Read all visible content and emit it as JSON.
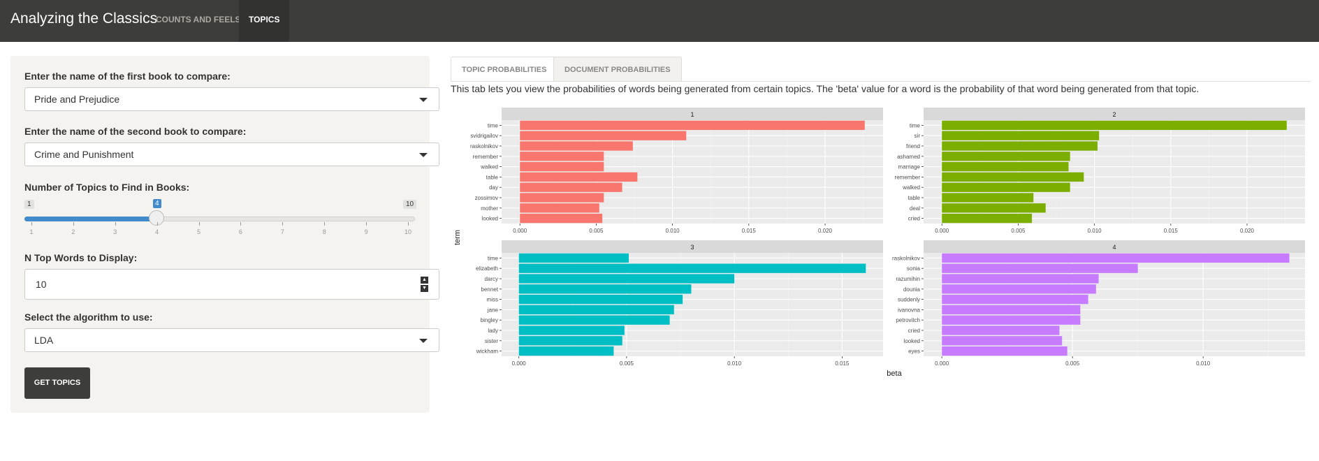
{
  "navbar": {
    "brand": "Analyzing the Classics",
    "tabs": [
      {
        "label": "COUNTS AND FEELS",
        "active": false
      },
      {
        "label": "TOPICS",
        "active": true
      }
    ]
  },
  "sidebar": {
    "first_book_label": "Enter the name of the first book to compare:",
    "first_book_value": "Pride and Prejudice",
    "second_book_label": "Enter the name of the second book to compare:",
    "second_book_value": "Crime and Punishment",
    "topics_label": "Number of Topics to Find in Books:",
    "slider_min": "1",
    "slider_max": "10",
    "slider_value": "4",
    "slider_ticks": [
      "1",
      "2",
      "3",
      "4",
      "5",
      "6",
      "7",
      "8",
      "9",
      "10"
    ],
    "ntop_label": "N Top Words to Display:",
    "ntop_value": "10",
    "algo_label": "Select the algorithm to use:",
    "algo_value": "LDA",
    "button_label": "GET TOPICS"
  },
  "main": {
    "tabs": [
      {
        "label": "TOPIC PROBABILITIES",
        "active": true
      },
      {
        "label": "DOCUMENT PROBABILITIES",
        "active": false
      }
    ],
    "description": "This tab lets you view the probabilities of words being generated from certain topics. The 'beta' value for a word is the probability of that word being generated from that topic."
  },
  "chart_data": {
    "type": "bar",
    "orientation": "horizontal",
    "facets": true,
    "xlabel": "beta",
    "ylabel": "term",
    "panels": [
      {
        "title": "1",
        "color": "#f8766d",
        "terms": [
          "time",
          "svidrigailov",
          "raskolnikov",
          "remember",
          "walked",
          "table",
          "day",
          "zossimov",
          "mother",
          "looked"
        ],
        "values": [
          0.0226,
          0.0109,
          0.0074,
          0.0055,
          0.0055,
          0.0077,
          0.0067,
          0.0055,
          0.0052,
          0.0054
        ],
        "xlim": [
          -0.0012,
          0.0238
        ],
        "ticks": [
          "0.000",
          "0.005",
          "0.010",
          "0.015",
          "0.020"
        ],
        "tick_values": [
          0,
          0.005,
          0.01,
          0.015,
          0.02
        ]
      },
      {
        "title": "2",
        "color": "#7cae00",
        "terms": [
          "time",
          "sir",
          "friend",
          "ashamed",
          "marriage",
          "remember",
          "walked",
          "table",
          "deal",
          "cried"
        ],
        "values": [
          0.0226,
          0.0103,
          0.0102,
          0.0084,
          0.0083,
          0.0093,
          0.0084,
          0.006,
          0.0068,
          0.0059
        ],
        "xlim": [
          -0.0012,
          0.0238
        ],
        "ticks": [
          "0.000",
          "0.005",
          "0.010",
          "0.015",
          "0.020"
        ],
        "tick_values": [
          0,
          0.005,
          0.01,
          0.015,
          0.02
        ]
      },
      {
        "title": "3",
        "color": "#00bfc4",
        "terms": [
          "time",
          "elizabeth",
          "darcy",
          "bennet",
          "miss",
          "jane",
          "bingley",
          "lady",
          "sister",
          "wickham"
        ],
        "values": [
          0.0051,
          0.0161,
          0.01,
          0.008,
          0.0076,
          0.0072,
          0.007,
          0.0049,
          0.0048,
          0.0044
        ],
        "xlim": [
          -0.0008,
          0.0169
        ],
        "ticks": [
          "0.000",
          "0.005",
          "0.010",
          "0.015"
        ],
        "tick_values": [
          0,
          0.005,
          0.01,
          0.015
        ]
      },
      {
        "title": "4",
        "color": "#c77cff",
        "terms": [
          "raskolnikov",
          "sonia",
          "razumihin",
          "dounia",
          "suddenly",
          "ivanovna",
          "petrovitch",
          "cried",
          "looked",
          "eyes"
        ],
        "values": [
          0.0133,
          0.0075,
          0.006,
          0.0059,
          0.0056,
          0.0053,
          0.0053,
          0.0045,
          0.0046,
          0.0048
        ],
        "xlim": [
          -0.0007,
          0.0139
        ],
        "ticks": [
          "0.000",
          "0.005",
          "0.010"
        ],
        "tick_values": [
          0,
          0.005,
          0.01
        ]
      }
    ]
  }
}
